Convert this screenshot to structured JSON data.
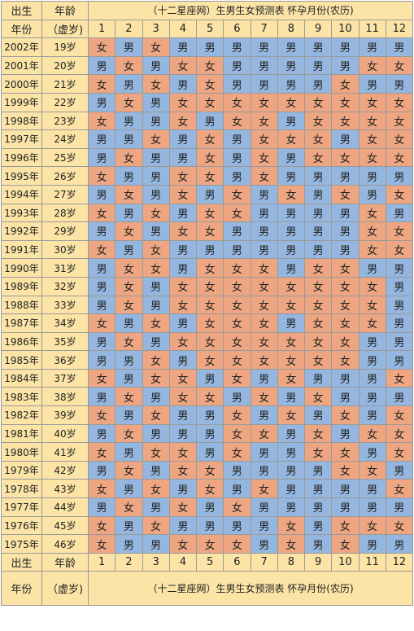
{
  "header": {
    "birth": "出生",
    "age": "年龄",
    "title": "（十二星座网）生男生女预测表 怀孕月份(农历)",
    "year": "年份",
    "nominal_age": "（虚岁)",
    "months": [
      "1",
      "2",
      "3",
      "4",
      "5",
      "6",
      "7",
      "8",
      "9",
      "10",
      "11",
      "12"
    ]
  },
  "colors": {
    "boy": "#94b6df",
    "girl": "#eda681",
    "header": "#fbe4a6"
  },
  "rows": [
    {
      "year": "2002年",
      "age": "19岁",
      "cells": [
        "女",
        "男",
        "女",
        "男",
        "男",
        "男",
        "男",
        "男",
        "男",
        "男",
        "男",
        "男"
      ]
    },
    {
      "year": "2001年",
      "age": "20岁",
      "cells": [
        "男",
        "女",
        "男",
        "女",
        "女",
        "男",
        "男",
        "男",
        "男",
        "男",
        "女",
        "女"
      ]
    },
    {
      "year": "2000年",
      "age": "21岁",
      "cells": [
        "女",
        "男",
        "女",
        "男",
        "女",
        "男",
        "男",
        "男",
        "男",
        "女",
        "男",
        "男"
      ]
    },
    {
      "year": "1999年",
      "age": "22岁",
      "cells": [
        "男",
        "女",
        "男",
        "女",
        "女",
        "女",
        "女",
        "女",
        "女",
        "女",
        "女",
        "女"
      ]
    },
    {
      "year": "1998年",
      "age": "23岁",
      "cells": [
        "女",
        "男",
        "男",
        "女",
        "男",
        "女",
        "女",
        "男",
        "女",
        "女",
        "女",
        "女"
      ]
    },
    {
      "year": "1997年",
      "age": "24岁",
      "cells": [
        "男",
        "男",
        "女",
        "男",
        "女",
        "男",
        "女",
        "女",
        "女",
        "男",
        "女",
        "女"
      ]
    },
    {
      "year": "1996年",
      "age": "25岁",
      "cells": [
        "男",
        "女",
        "男",
        "男",
        "女",
        "男",
        "女",
        "男",
        "女",
        "女",
        "女",
        "女"
      ]
    },
    {
      "year": "1995年",
      "age": "26岁",
      "cells": [
        "女",
        "男",
        "男",
        "女",
        "女",
        "男",
        "女",
        "男",
        "男",
        "男",
        "男",
        "男"
      ]
    },
    {
      "year": "1994年",
      "age": "27岁",
      "cells": [
        "男",
        "女",
        "男",
        "女",
        "男",
        "女",
        "男",
        "女",
        "男",
        "女",
        "男",
        "女"
      ]
    },
    {
      "year": "1993年",
      "age": "28岁",
      "cells": [
        "女",
        "男",
        "女",
        "男",
        "女",
        "女",
        "男",
        "男",
        "男",
        "男",
        "女",
        "男"
      ]
    },
    {
      "year": "1992年",
      "age": "29岁",
      "cells": [
        "男",
        "女",
        "男",
        "女",
        "女",
        "男",
        "男",
        "男",
        "男",
        "男",
        "女",
        "女"
      ]
    },
    {
      "year": "1991年",
      "age": "30岁",
      "cells": [
        "女",
        "男",
        "女",
        "男",
        "男",
        "男",
        "男",
        "男",
        "男",
        "男",
        "女",
        "女"
      ]
    },
    {
      "year": "1990年",
      "age": "31岁",
      "cells": [
        "男",
        "女",
        "女",
        "男",
        "女",
        "女",
        "女",
        "男",
        "女",
        "女",
        "男",
        "男"
      ]
    },
    {
      "year": "1989年",
      "age": "32岁",
      "cells": [
        "男",
        "女",
        "男",
        "女",
        "女",
        "女",
        "女",
        "女",
        "女",
        "女",
        "女",
        "男"
      ]
    },
    {
      "year": "1988年",
      "age": "33岁",
      "cells": [
        "男",
        "女",
        "男",
        "女",
        "女",
        "女",
        "女",
        "女",
        "女",
        "女",
        "女",
        "男"
      ]
    },
    {
      "year": "1987年",
      "age": "34岁",
      "cells": [
        "女",
        "男",
        "女",
        "男",
        "女",
        "女",
        "女",
        "男",
        "女",
        "女",
        "女",
        "男"
      ]
    },
    {
      "year": "1986年",
      "age": "35岁",
      "cells": [
        "男",
        "女",
        "男",
        "女",
        "女",
        "女",
        "女",
        "女",
        "女",
        "女",
        "男",
        "男"
      ]
    },
    {
      "year": "1985年",
      "age": "36岁",
      "cells": [
        "男",
        "男",
        "女",
        "男",
        "女",
        "女",
        "女",
        "女",
        "女",
        "女",
        "男",
        "男"
      ]
    },
    {
      "year": "1984年",
      "age": "37岁",
      "cells": [
        "女",
        "男",
        "女",
        "女",
        "男",
        "女",
        "男",
        "女",
        "男",
        "男",
        "男",
        "女"
      ]
    },
    {
      "year": "1983年",
      "age": "38岁",
      "cells": [
        "男",
        "女",
        "男",
        "女",
        "女",
        "男",
        "女",
        "男",
        "女",
        "男",
        "男",
        "男"
      ]
    },
    {
      "year": "1982年",
      "age": "39岁",
      "cells": [
        "女",
        "男",
        "女",
        "男",
        "男",
        "女",
        "男",
        "女",
        "男",
        "女",
        "男",
        "女"
      ]
    },
    {
      "year": "1981年",
      "age": "40岁",
      "cells": [
        "男",
        "女",
        "男",
        "男",
        "男",
        "女",
        "女",
        "男",
        "女",
        "男",
        "女",
        "女"
      ]
    },
    {
      "year": "1980年",
      "age": "41岁",
      "cells": [
        "女",
        "男",
        "女",
        "女",
        "男",
        "女",
        "男",
        "男",
        "女",
        "女",
        "男",
        "女"
      ]
    },
    {
      "year": "1979年",
      "age": "42岁",
      "cells": [
        "男",
        "女",
        "男",
        "女",
        "女",
        "男",
        "男",
        "男",
        "男",
        "女",
        "女",
        "男"
      ]
    },
    {
      "year": "1978年",
      "age": "43岁",
      "cells": [
        "女",
        "男",
        "女",
        "男",
        "女",
        "男",
        "女",
        "男",
        "男",
        "男",
        "男",
        "女"
      ]
    },
    {
      "year": "1977年",
      "age": "44岁",
      "cells": [
        "男",
        "女",
        "男",
        "女",
        "男",
        "女",
        "男",
        "男",
        "男",
        "男",
        "男",
        "男"
      ]
    },
    {
      "year": "1976年",
      "age": "45岁",
      "cells": [
        "女",
        "男",
        "女",
        "男",
        "男",
        "男",
        "男",
        "女",
        "男",
        "女",
        "女",
        "女"
      ]
    },
    {
      "year": "1975年",
      "age": "46岁",
      "cells": [
        "女",
        "男",
        "男",
        "女",
        "女",
        "女",
        "男",
        "女",
        "男",
        "女",
        "男",
        "男"
      ]
    }
  ]
}
